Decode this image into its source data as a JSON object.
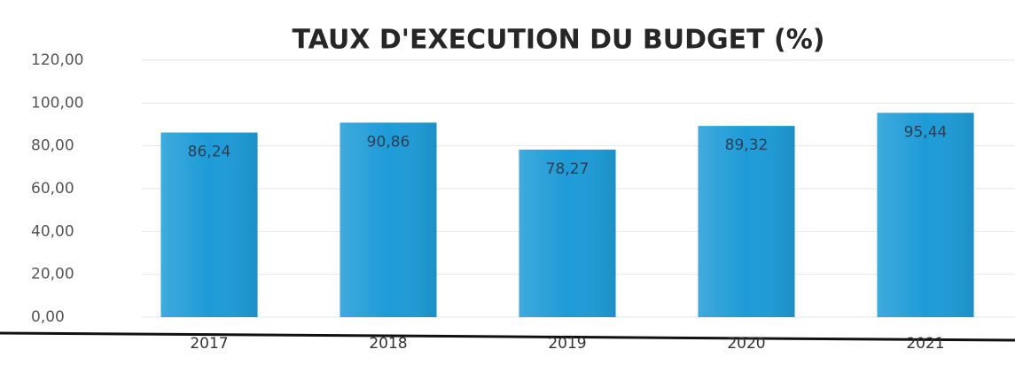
{
  "chart_data": {
    "type": "bar",
    "title": "TAUX D'EXECUTION DU BUDGET (%)",
    "categories": [
      "2017",
      "2018",
      "2019",
      "2020",
      "2021"
    ],
    "values": [
      86.24,
      90.86,
      78.27,
      89.32,
      95.44
    ],
    "value_labels": [
      "86,24",
      "90,86",
      "78,27",
      "89,32",
      "95,44"
    ],
    "color": "#1e9bd7",
    "ylim": [
      0,
      120
    ],
    "yticks": [
      {
        "value": 0,
        "label": "0,00"
      },
      {
        "value": 20,
        "label": "20,00"
      },
      {
        "value": 40,
        "label": "40,00"
      },
      {
        "value": 60,
        "label": "60,00"
      },
      {
        "value": 80,
        "label": "80,00"
      },
      {
        "value": 100,
        "label": "100,00"
      },
      {
        "value": 120,
        "label": "120,00"
      }
    ],
    "grid": true
  }
}
